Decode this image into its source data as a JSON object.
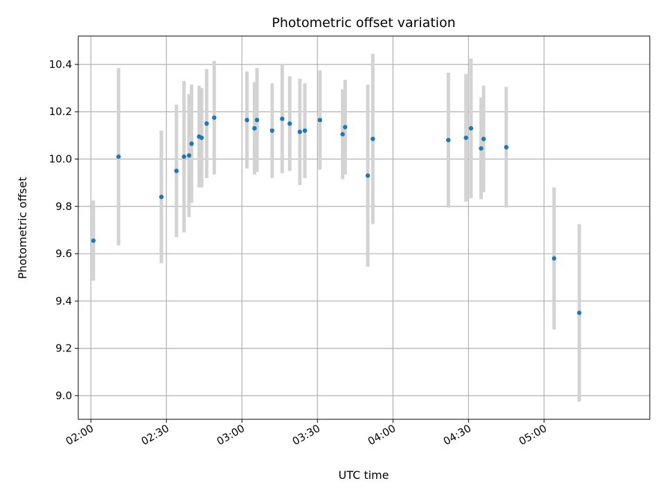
{
  "chart_data": {
    "type": "scatter",
    "title": "Photometric offset variation",
    "xlabel": "UTC time",
    "ylabel": "Photometric offset",
    "grid": true,
    "xlim": [
      "01:55",
      "05:42"
    ],
    "ylim": [
      8.9,
      10.52
    ],
    "x_ticks": [
      "02:00",
      "02:30",
      "03:00",
      "03:30",
      "04:00",
      "04:30",
      "05:00"
    ],
    "y_ticks": [
      "9.0",
      "9.2",
      "9.4",
      "9.6",
      "9.8",
      "10.0",
      "10.2",
      "10.4"
    ],
    "colors": {
      "point": "#1f77b4",
      "error_bar": "#d3d3d3",
      "grid": "#b0b0b0"
    },
    "series": [
      {
        "points": [
          {
            "x": "02:01",
            "y": 9.655,
            "err": 0.17
          },
          {
            "x": "02:11",
            "y": 10.01,
            "err": 0.375
          },
          {
            "x": "02:28",
            "y": 9.84,
            "err": 0.28
          },
          {
            "x": "02:34",
            "y": 9.95,
            "err": 0.28
          },
          {
            "x": "02:37",
            "y": 10.01,
            "err": 0.32
          },
          {
            "x": "02:39",
            "y": 10.015,
            "err": 0.26
          },
          {
            "x": "02:40",
            "y": 10.065,
            "err": 0.25
          },
          {
            "x": "02:43",
            "y": 10.095,
            "err": 0.215
          },
          {
            "x": "02:44",
            "y": 10.09,
            "err": 0.21
          },
          {
            "x": "02:46",
            "y": 10.15,
            "err": 0.23
          },
          {
            "x": "02:49",
            "y": 10.175,
            "err": 0.24
          },
          {
            "x": "03:02",
            "y": 10.165,
            "err": 0.205
          },
          {
            "x": "03:05",
            "y": 10.13,
            "err": 0.195
          },
          {
            "x": "03:06",
            "y": 10.165,
            "err": 0.22
          },
          {
            "x": "03:12",
            "y": 10.12,
            "err": 0.2
          },
          {
            "x": "03:16",
            "y": 10.17,
            "err": 0.23
          },
          {
            "x": "03:19",
            "y": 10.15,
            "err": 0.2
          },
          {
            "x": "03:23",
            "y": 10.115,
            "err": 0.225
          },
          {
            "x": "03:25",
            "y": 10.12,
            "err": 0.2
          },
          {
            "x": "03:31",
            "y": 10.165,
            "err": 0.21
          },
          {
            "x": "03:40",
            "y": 10.105,
            "err": 0.19
          },
          {
            "x": "03:41",
            "y": 10.135,
            "err": 0.2
          },
          {
            "x": "03:50",
            "y": 9.93,
            "err": 0.385
          },
          {
            "x": "03:52",
            "y": 10.085,
            "err": 0.36
          },
          {
            "x": "04:22",
            "y": 10.08,
            "err": 0.285
          },
          {
            "x": "04:29",
            "y": 10.09,
            "err": 0.27
          },
          {
            "x": "04:31",
            "y": 10.13,
            "err": 0.295
          },
          {
            "x": "04:35",
            "y": 10.045,
            "err": 0.215
          },
          {
            "x": "04:36",
            "y": 10.085,
            "err": 0.225
          },
          {
            "x": "04:45",
            "y": 10.05,
            "err": 0.255
          },
          {
            "x": "05:04",
            "y": 9.58,
            "err": 0.3
          },
          {
            "x": "05:14",
            "y": 9.35,
            "err": 0.375
          }
        ]
      }
    ]
  }
}
